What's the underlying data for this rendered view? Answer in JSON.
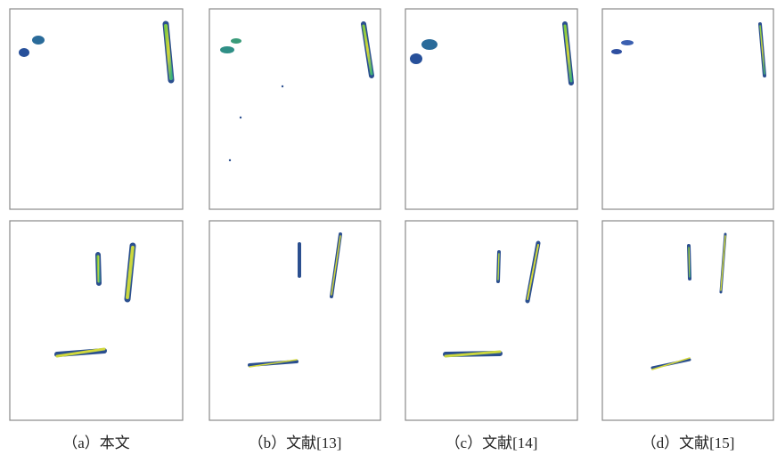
{
  "captions": [
    "（a）本文",
    "（b）文献[13]",
    "（c）文献[14]",
    "（d）文献[15]"
  ]
}
